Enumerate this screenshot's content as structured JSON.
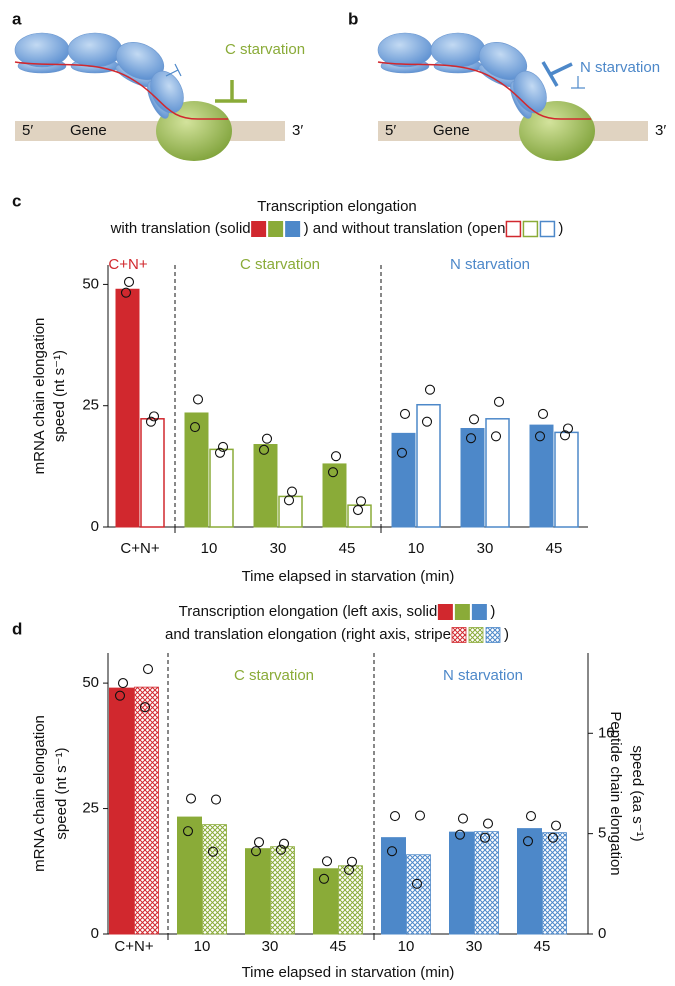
{
  "diagrams": [
    {
      "label": "a",
      "condition": "C starvation",
      "five_prime": "5′",
      "gene": "Gene",
      "three_prime": "3′"
    },
    {
      "label": "b",
      "condition": "N starvation",
      "five_prime": "5′",
      "gene": "Gene",
      "three_prime": "3′"
    }
  ],
  "chart_data": [
    {
      "type": "bar",
      "panel": "c",
      "title_lines": [
        [
          "Transcription elongation"
        ],
        [
          "with translation (solid",
          ") and without translation (open",
          ")"
        ]
      ],
      "groups": [
        {
          "label": "C+N+",
          "color": "#d1282e"
        },
        {
          "label": "C starvation",
          "color": "#8aab38"
        },
        {
          "label": "N starvation",
          "color": "#4d88c9"
        }
      ],
      "categories": [
        "C+N+",
        "10",
        "30",
        "45",
        "10",
        "30",
        "45"
      ],
      "colors": [
        "#d1282e",
        "#8aab38",
        "#8aab38",
        "#8aab38",
        "#4d88c9",
        "#4d88c9",
        "#4d88c9"
      ],
      "series": [
        {
          "fill": "solid",
          "values": [
            49,
            23.5,
            17,
            13,
            19.3,
            20.3,
            21
          ],
          "points": [
            [
              50.5,
              48.3
            ],
            [
              26.3,
              20.6
            ],
            [
              18.2,
              15.9
            ],
            [
              14.6,
              11.3
            ],
            [
              23.3,
              15.3
            ],
            [
              22.2,
              18.3
            ],
            [
              23.3,
              18.7
            ]
          ]
        },
        {
          "fill": "open",
          "values": [
            22.3,
            16,
            6.3,
            4.5,
            25.2,
            22.3,
            19.5
          ],
          "points": [
            [
              22.8,
              21.7
            ],
            [
              16.5,
              15.3
            ],
            [
              7.3,
              5.5
            ],
            [
              5.3,
              3.5
            ],
            [
              28.3,
              21.7
            ],
            [
              25.8,
              18.7
            ],
            [
              20.3,
              18.9
            ]
          ]
        }
      ],
      "ylabel": [
        "mRNA chain elongation",
        "speed (nt s⁻¹)"
      ],
      "xlabel": "Time elapsed in starvation (min)",
      "ylim": [
        0,
        54
      ],
      "yticks": [
        0,
        25,
        50
      ]
    },
    {
      "type": "bar",
      "panel": "d",
      "title_lines": [
        [
          "Transcription elongation (left axis, solid",
          ")"
        ],
        [
          "and translation elongation (right axis, stripe",
          ")"
        ]
      ],
      "groups": [
        {
          "label": "C starvation",
          "color": "#8aab38"
        },
        {
          "label": "N starvation",
          "color": "#4d88c9"
        }
      ],
      "categories": [
        "C+N+",
        "10",
        "30",
        "45",
        "10",
        "30",
        "45"
      ],
      "colors": [
        "#d1282e",
        "#8aab38",
        "#8aab38",
        "#8aab38",
        "#4d88c9",
        "#4d88c9",
        "#4d88c9"
      ],
      "series": [
        {
          "fill": "solid",
          "values": [
            49,
            23.3,
            17,
            13,
            19.2,
            20.3,
            21
          ],
          "points": [
            [
              50,
              47.5
            ],
            [
              27,
              20.5
            ],
            [
              18.3,
              16.5
            ],
            [
              14.5,
              11
            ],
            [
              23.5,
              16.5
            ],
            [
              23,
              19.8
            ],
            [
              23.5,
              18.5
            ]
          ]
        },
        {
          "fill": "stripe",
          "axis": "y2",
          "values": [
            12.3,
            5.45,
            4.35,
            3.4,
            3.95,
            5.1,
            5.05
          ],
          "points": [
            [
              13.2,
              11.3
            ],
            [
              6.7,
              4.1
            ],
            [
              4.5,
              4.2
            ],
            [
              3.6,
              3.2
            ],
            [
              5.9,
              2.5
            ],
            [
              5.5,
              4.8
            ],
            [
              5.4,
              4.8
            ]
          ]
        }
      ],
      "ylabel": [
        "mRNA chain elongation",
        "speed (nt s⁻¹)"
      ],
      "y2label": [
        "Peptide chain elongation",
        "speed (aa s⁻¹)"
      ],
      "xlabel": "Time elapsed in starvation (min)",
      "ylim": [
        0,
        56
      ],
      "yticks": [
        0,
        25,
        50
      ],
      "y2lim": [
        0,
        14
      ],
      "y2ticks": [
        0,
        5,
        10
      ]
    }
  ]
}
